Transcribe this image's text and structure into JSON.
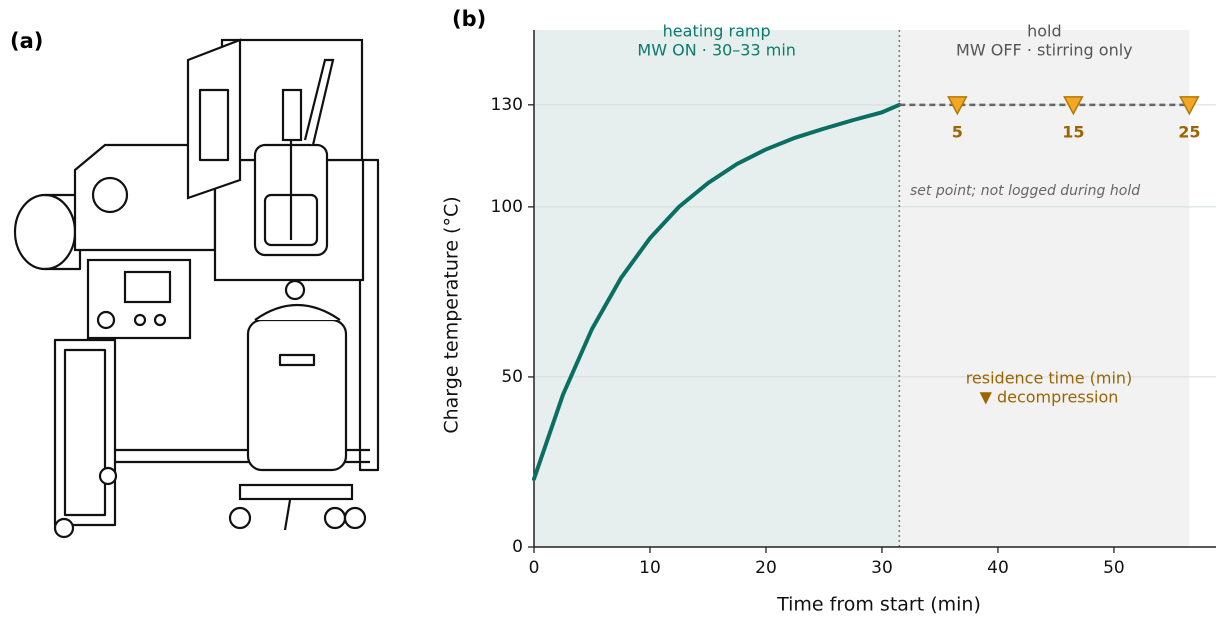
{
  "panels": {
    "a": "(a)",
    "b": "(b)"
  },
  "chart_data": {
    "type": "line",
    "xlabel": "Time from start (min)",
    "ylabel": "Charge temperature (°C)",
    "xlim": [
      0,
      58.8
    ],
    "ylim": [
      0,
      152
    ],
    "xticks": [
      0,
      10,
      20,
      30,
      40,
      50
    ],
    "yticks": [
      0,
      50,
      100,
      130
    ],
    "grid": true,
    "regions": [
      {
        "x": [
          0,
          31.5
        ],
        "label": "heating ramp",
        "sublabel": "MW ON · 30–33 min",
        "color": "#e6efed",
        "text_color": "#0b7a6d"
      },
      {
        "x": [
          31.5,
          56.5
        ],
        "label": "hold",
        "sublabel": "MW OFF · stirring only",
        "color": "#f2f2f2",
        "text_color": "#555555"
      }
    ],
    "series": [
      {
        "x": [
          0,
          2.5,
          5,
          7.5,
          10,
          12.5,
          15,
          17.5,
          20,
          22.5,
          25,
          27.5,
          30,
          31.5
        ],
        "values": [
          20,
          44.8,
          64.1,
          79.1,
          90.8,
          100,
          107,
          112.6,
          116.9,
          120.3,
          123,
          125.5,
          127.8,
          130
        ],
        "color": "#0b6e63"
      }
    ],
    "hold": {
      "x": [
        31.5,
        56.5
      ],
      "values": [
        130,
        130
      ],
      "color": "#666666"
    },
    "markers": {
      "x": [
        36.5,
        46.5,
        56.5
      ],
      "values": [
        130,
        130,
        130
      ],
      "labels": [
        5,
        15,
        25
      ],
      "color": "#f5a623",
      "edge": "#b07a00",
      "label_color": "#9c6500"
    },
    "annotations": {
      "set_point": "set point; not logged during hold",
      "residence": "residence time (min)",
      "decompression": "▼ decompression"
    }
  }
}
